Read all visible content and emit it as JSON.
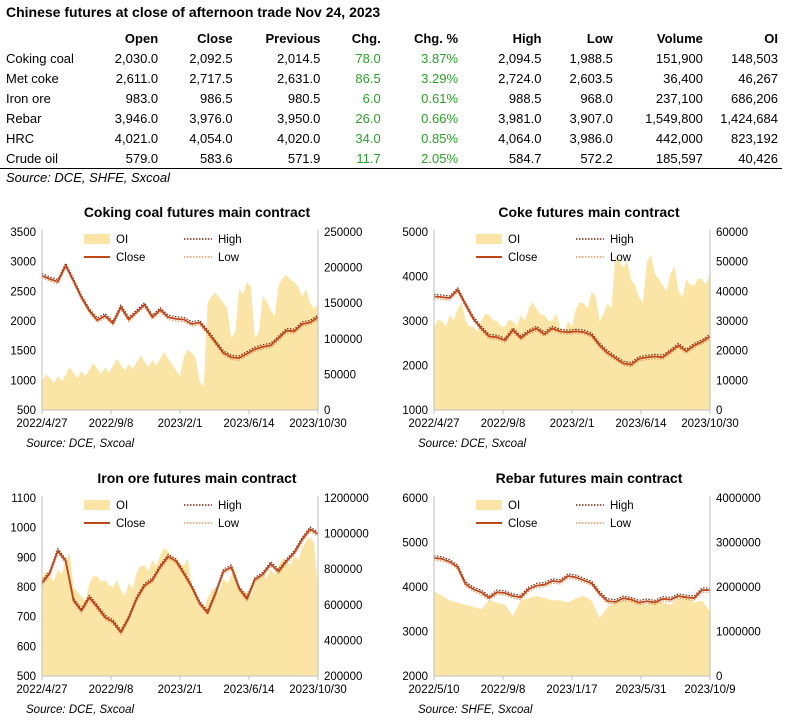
{
  "header": {
    "title": "Chinese futures at close of afternoon trade Nov 24, 2023"
  },
  "table": {
    "columns": [
      "",
      "Open",
      "Close",
      "Previous",
      "Chg.",
      "Chg. %",
      "High",
      "Low",
      "Volume",
      "OI"
    ],
    "rows": [
      [
        "Coking coal",
        "2,030.0",
        "2,092.5",
        "2,014.5",
        "78.0",
        "3.87%",
        "2,094.5",
        "1,988.5",
        "151,900",
        "148,503"
      ],
      [
        "Met coke",
        "2,611.0",
        "2,717.5",
        "2,631.0",
        "86.5",
        "3.29%",
        "2,724.0",
        "2,603.5",
        "36,400",
        "46,267"
      ],
      [
        "Iron ore",
        "983.0",
        "986.5",
        "980.5",
        "6.0",
        "0.61%",
        "988.5",
        "968.0",
        "237,100",
        "686,206"
      ],
      [
        "Rebar",
        "3,946.0",
        "3,976.0",
        "3,950.0",
        "26.0",
        "0.66%",
        "3,981.0",
        "3,907.0",
        "1,549,800",
        "1,424,684"
      ],
      [
        "HRC",
        "4,021.0",
        "4,054.0",
        "4,020.0",
        "34.0",
        "0.85%",
        "4,064.0",
        "3,986.0",
        "442,000",
        "823,192"
      ],
      [
        "Crude oil",
        "579.0",
        "583.6",
        "571.9",
        "11.7",
        "2.05%",
        "584.7",
        "572.2",
        "185,597",
        "40,426"
      ]
    ],
    "source": "Source: DCE, SHFE, Sxcoal",
    "chg_color": "#2aa02a"
  },
  "colors": {
    "oi_area": "#fbe5a6",
    "close_line": "#c0461a",
    "high_line": "#7a2a12",
    "low_line": "#e8955a"
  },
  "chart_data": [
    {
      "type": "line",
      "title": "Coking coal futures main contract",
      "source": "Source: DCE, Sxcoal",
      "x_ticks": [
        "2022/4/27",
        "2022/9/8",
        "2023/2/1",
        "2023/6/14",
        "2023/10/30"
      ],
      "y_left": {
        "min": 500,
        "max": 3500,
        "ticks": [
          "500",
          "1000",
          "1500",
          "2000",
          "2500",
          "3000",
          "3500"
        ]
      },
      "y_right": {
        "min": 0,
        "max": 250000,
        "ticks": [
          "0",
          "50000",
          "100000",
          "150000",
          "200000",
          "250000"
        ]
      },
      "legend": [
        "OI",
        "Close",
        "High",
        "Low"
      ],
      "close": [
        2800,
        2720,
        2650,
        2900,
        2700,
        2400,
        2150,
        2050,
        2100,
        1950,
        2200,
        2050,
        2150,
        2250,
        2100,
        2200,
        2050,
        2000,
        2050,
        1950,
        1950,
        1850,
        1650,
        1450,
        1350,
        1400,
        1450,
        1500,
        1600,
        1600,
        1700,
        1800,
        1850,
        1950,
        1950,
        2100
      ],
      "oi": [
        40000,
        45000,
        48000,
        50000,
        52000,
        55000,
        56000,
        58000,
        60000,
        62000,
        63000,
        65000,
        67000,
        68000,
        70000,
        72000,
        72000,
        55000,
        75000,
        80000,
        40000,
        150000,
        165000,
        150000,
        100000,
        170000,
        180000,
        100000,
        160000,
        140000,
        175000,
        190000,
        180000,
        160000,
        150000,
        148503
      ]
    },
    {
      "type": "line",
      "title": "Coke futures main contract",
      "source": "Source: DCE, Sxcoal",
      "x_ticks": [
        "2022/4/27",
        "2022/9/8",
        "2023/2/1",
        "2023/6/14",
        "2023/10/30"
      ],
      "y_left": {
        "min": 1000,
        "max": 5000,
        "ticks": [
          "1000",
          "2000",
          "3000",
          "4000",
          "5000"
        ]
      },
      "y_right": {
        "min": 0,
        "max": 60000,
        "ticks": [
          "0",
          "10000",
          "20000",
          "30000",
          "40000",
          "50000",
          "60000"
        ]
      },
      "legend": [
        "OI",
        "Close",
        "High",
        "Low"
      ],
      "close": [
        3600,
        3550,
        3500,
        3650,
        3400,
        3050,
        2800,
        2700,
        2650,
        2550,
        2750,
        2650,
        2750,
        2800,
        2750,
        2850,
        2750,
        2700,
        2800,
        2750,
        2650,
        2500,
        2300,
        2150,
        2000,
        2050,
        2150,
        2150,
        2250,
        2200,
        2300,
        2400,
        2350,
        2450,
        2500,
        2700
      ],
      "oi": [
        28000,
        30000,
        32000,
        34000,
        30000,
        28000,
        30000,
        32000,
        30000,
        28000,
        30000,
        32000,
        34000,
        34000,
        32000,
        30000,
        28000,
        30000,
        34000,
        36000,
        40000,
        30000,
        36000,
        52000,
        48000,
        44000,
        38000,
        50000,
        46000,
        42000,
        46000,
        40000,
        44000,
        42000,
        44000,
        46267
      ]
    },
    {
      "type": "line",
      "title": "Iron ore futures main contract",
      "source": "Source: DCE, Sxcoal",
      "x_ticks": [
        "2022/4/27",
        "2022/9/8",
        "2023/2/1",
        "2023/6/14",
        "2023/10/30"
      ],
      "y_left": {
        "min": 500,
        "max": 1100,
        "ticks": [
          "500",
          "600",
          "700",
          "800",
          "900",
          "1000",
          "1100"
        ]
      },
      "y_right": {
        "min": 200000,
        "max": 1200000,
        "ticks": [
          "200000",
          "400000",
          "600000",
          "800000",
          "1000000",
          "1200000"
        ]
      },
      "legend": [
        "OI",
        "Close",
        "High",
        "Low"
      ],
      "close": [
        820,
        850,
        920,
        880,
        760,
        720,
        760,
        740,
        700,
        680,
        640,
        700,
        760,
        800,
        830,
        870,
        900,
        880,
        850,
        800,
        740,
        720,
        780,
        850,
        860,
        800,
        760,
        820,
        850,
        880,
        850,
        880,
        920,
        960,
        990,
        986
      ],
      "oi": [
        750000,
        760000,
        800000,
        850000,
        700000,
        650000,
        720000,
        760000,
        740000,
        700000,
        680000,
        720000,
        780000,
        820000,
        850000,
        880000,
        900000,
        860000,
        820000,
        700000,
        600000,
        640000,
        700000,
        750000,
        760000,
        700000,
        680000,
        720000,
        780000,
        800000,
        820000,
        850000,
        880000,
        920000,
        980000,
        686206
      ]
    },
    {
      "type": "line",
      "title": "Rebar futures main contract",
      "source": "Source: SHFE, Sxcoal",
      "x_ticks": [
        "2022/5/10",
        "2022/9/8",
        "2023/1/17",
        "2023/5/31",
        "2023/10/9"
      ],
      "y_left": {
        "min": 2000,
        "max": 6000,
        "ticks": [
          "2000",
          "3000",
          "4000",
          "5000",
          "6000"
        ]
      },
      "y_right": {
        "min": 0,
        "max": 4000000,
        "ticks": [
          "0",
          "1000000",
          "2000000",
          "3000000",
          "4000000"
        ]
      },
      "legend": [
        "OI",
        "Close",
        "High",
        "Low"
      ],
      "close": [
        4700,
        4650,
        4550,
        4400,
        4100,
        3950,
        3850,
        3800,
        3900,
        3850,
        3750,
        3800,
        3950,
        4000,
        4100,
        4150,
        4100,
        4200,
        4250,
        4150,
        4050,
        3900,
        3700,
        3650,
        3700,
        3750,
        3650,
        3650,
        3700,
        3750,
        3700,
        3750,
        3800,
        3750,
        3900,
        3976
      ]
    }
  ]
}
